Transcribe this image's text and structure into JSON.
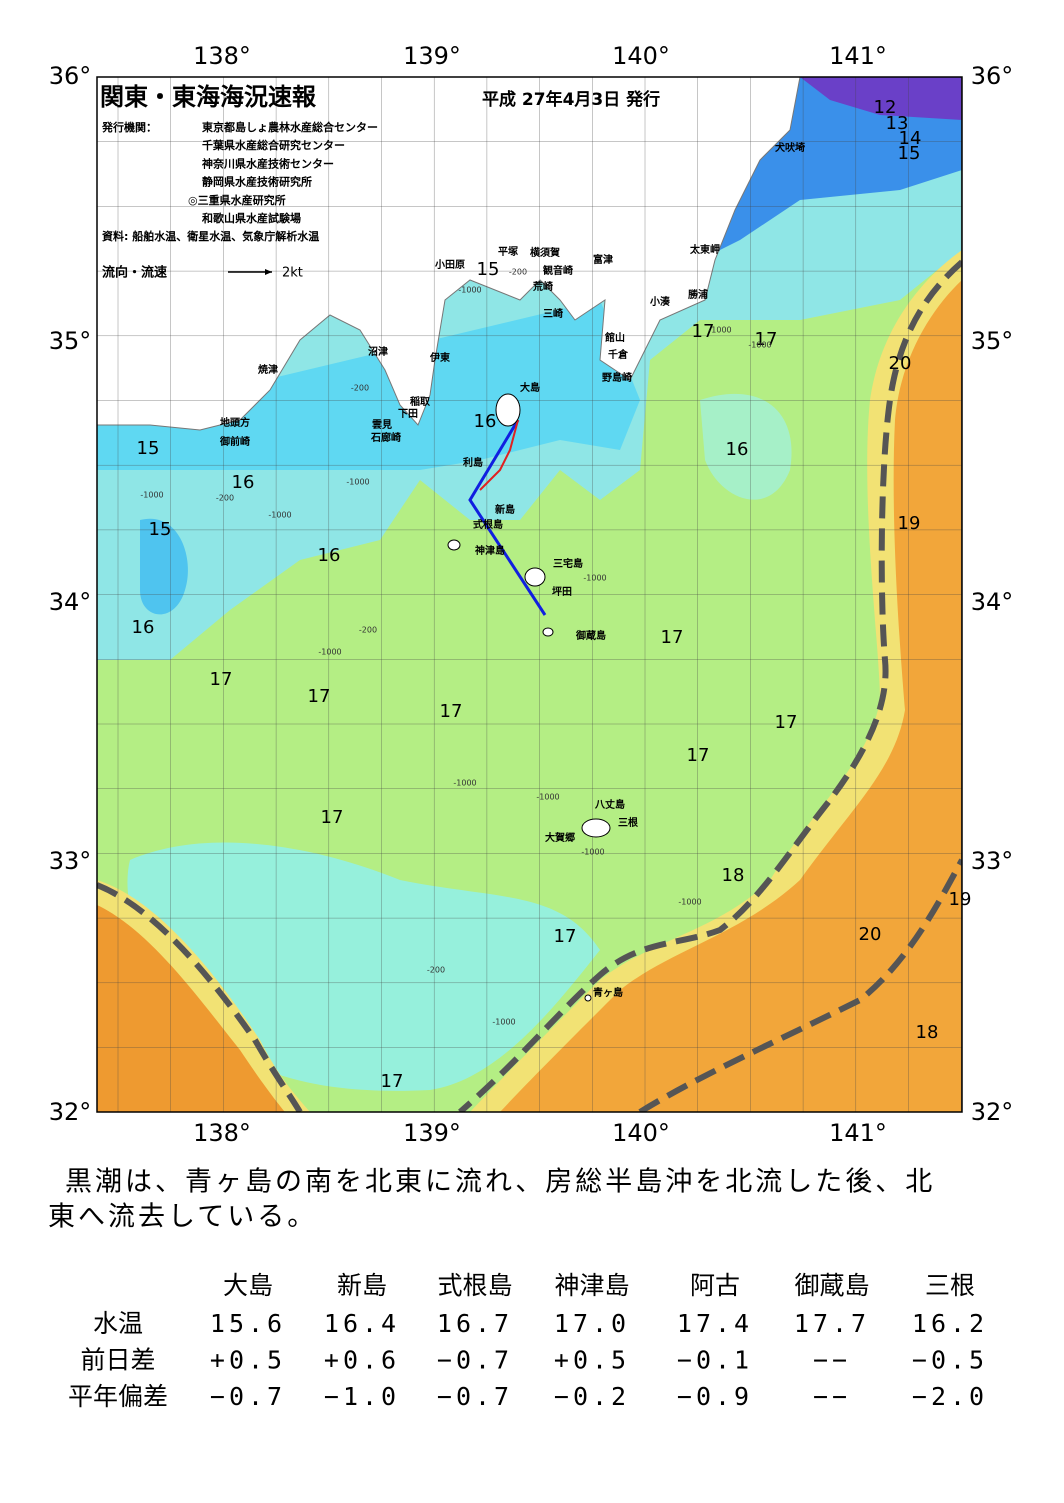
{
  "header": {
    "title": "関東・東海海況速報",
    "date": "平成 27年4月3日 発行",
    "issuer_label": "発行機関：",
    "issuers": [
      "東京都島しょ農林水産総合センター",
      "千葉県水産総合研究センター",
      "神奈川県水産技術センター",
      "静岡県水産技術研究所",
      "◎三重県水産研究所",
      "和歌山県水産試験場"
    ],
    "source": "資料: 船舶水温、衛星水温、気象庁解析水温",
    "legend_label": "流向・流速",
    "legend_unit": "2kt"
  },
  "map": {
    "lon_labels": [
      "138°",
      "139°",
      "140°",
      "141°"
    ],
    "lat_labels": [
      "36°",
      "35°",
      "34°",
      "33°",
      "32°"
    ],
    "places": [
      "犬吠埼",
      "太東岬",
      "勝浦",
      "小湊",
      "富津",
      "横須賀",
      "観音崎",
      "平塚",
      "荒崎",
      "三崎",
      "小田原",
      "館山",
      "千倉",
      "野島崎",
      "沼津",
      "伊東",
      "焼津",
      "稲取",
      "下田",
      "雲見",
      "石廊崎",
      "地頭方",
      "御前崎",
      "大島",
      "利島",
      "新島",
      "式根島",
      "神津島",
      "三宅島",
      "坪田",
      "御蔵島",
      "八丈島",
      "三根",
      "大賀郷",
      "青ヶ島"
    ],
    "isotherm_labels": [
      "12",
      "13",
      "14",
      "15",
      "15",
      "17",
      "17",
      "20",
      "16",
      "16",
      "15",
      "16",
      "19",
      "15",
      "16",
      "16",
      "17",
      "17",
      "17",
      "17",
      "17",
      "17",
      "17",
      "18",
      "19",
      "20",
      "17",
      "18",
      "17"
    ],
    "depth_labels": [
      "-200",
      "-1000",
      "-200",
      "-1000",
      "-1000",
      "-200",
      "-1000",
      "-1000",
      "-200",
      "-1000",
      "-1000",
      "-1000",
      "-1000",
      "-200",
      "-1000",
      "-1000",
      "-1000",
      "-1000"
    ]
  },
  "summary": [
    "黒潮は、青ヶ島の南を北東に流れ、房総半島沖を北流した後、北",
    "東へ流去している。"
  ],
  "table": {
    "columns": [
      "大島",
      "新島",
      "式根島",
      "神津島",
      "阿古",
      "御蔵島",
      "三根"
    ],
    "rows": [
      {
        "label": "水温",
        "cells": [
          "15.6",
          "16.4",
          "16.7",
          "17.0",
          "17.4",
          "17.7",
          "16.2"
        ]
      },
      {
        "label": "前日差",
        "cells": [
          "+0.5",
          "+0.6",
          "−0.7",
          "+0.5",
          "−0.1",
          "−−",
          "−0.5"
        ]
      },
      {
        "label": "平年偏差",
        "cells": [
          "−0.7",
          "−1.0",
          "−0.7",
          "−0.2",
          "−0.9",
          "−−",
          "−2.0"
        ]
      }
    ]
  }
}
